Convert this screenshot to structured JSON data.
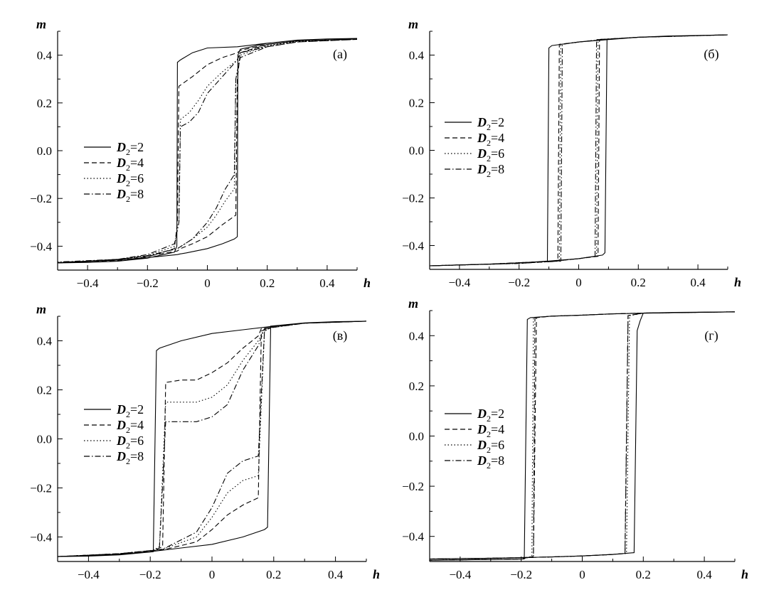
{
  "chart_data": [
    {
      "type": "line",
      "panel_label": "(а)",
      "xlabel": "h",
      "ylabel": "m",
      "xlim": [
        -0.5,
        0.5
      ],
      "ylim": [
        -0.5,
        0.5
      ],
      "xticks": [
        "-0.4",
        "-0.2",
        "0",
        "0.2",
        "0.4"
      ],
      "yticks": [
        "0.4",
        "0.2",
        "0.0",
        "-0.2",
        "-0.4"
      ],
      "grid": false,
      "legend_position": "middle-left",
      "series": [
        {
          "name": "D2=2",
          "legend_label": "D",
          "legend_sub": "2",
          "legend_val": "=2",
          "style": "solid",
          "x": [
            -0.5,
            -0.3,
            -0.2,
            -0.1,
            -0.09,
            -0.07,
            0,
            0.05,
            0.09,
            0.1,
            0.102,
            0.11,
            0.2,
            0.3,
            0.4,
            0.5,
            0.4,
            0.3,
            0.2,
            0.1,
            0,
            -0.05,
            -0.09,
            -0.1,
            -0.102,
            -0.11,
            -0.2,
            -0.3,
            -0.4,
            -0.5
          ],
          "y": [
            -0.47,
            -0.458,
            -0.448,
            -0.435,
            -0.432,
            -0.428,
            -0.41,
            -0.39,
            -0.37,
            -0.36,
            0.4,
            0.425,
            0.45,
            0.463,
            0.468,
            0.47,
            0.468,
            0.463,
            0.45,
            0.435,
            0.43,
            0.41,
            0.38,
            0.37,
            -0.4,
            -0.425,
            -0.45,
            -0.463,
            -0.468,
            -0.47
          ]
        },
        {
          "name": "D2=4",
          "legend_label": "D",
          "legend_sub": "2",
          "legend_val": "=4",
          "style": "dashed",
          "x": [
            -0.5,
            -0.3,
            -0.2,
            -0.1,
            -0.09,
            -0.05,
            0,
            0.05,
            0.095,
            0.1,
            0.11,
            0.2,
            0.3,
            0.5,
            0.3,
            0.2,
            0.11,
            0.1,
            0.05,
            0,
            -0.05,
            -0.095,
            -0.1,
            -0.11,
            -0.2,
            -0.3,
            -0.5
          ],
          "y": [
            -0.47,
            -0.455,
            -0.442,
            -0.42,
            -0.41,
            -0.39,
            -0.36,
            -0.31,
            -0.27,
            0.3,
            0.41,
            0.445,
            0.46,
            0.468,
            0.46,
            0.445,
            0.42,
            0.41,
            0.39,
            0.36,
            0.31,
            0.27,
            -0.3,
            -0.41,
            -0.445,
            -0.46,
            -0.468
          ]
        },
        {
          "name": "D2=6",
          "legend_label": "D",
          "legend_sub": "2",
          "legend_val": "=6",
          "style": "dotted",
          "x": [
            -0.5,
            -0.3,
            -0.2,
            -0.1,
            -0.05,
            0,
            0.03,
            0.06,
            0.09,
            0.095,
            0.11,
            0.2,
            0.3,
            0.5,
            0.3,
            0.2,
            0.11,
            0.1,
            0.05,
            0,
            -0.03,
            -0.06,
            -0.09,
            -0.095,
            -0.11,
            -0.2,
            -0.3,
            -0.5
          ],
          "y": [
            -0.47,
            -0.455,
            -0.44,
            -0.41,
            -0.37,
            -0.32,
            -0.27,
            -0.21,
            -0.16,
            0.3,
            0.4,
            0.44,
            0.458,
            0.467,
            0.458,
            0.44,
            0.41,
            0.38,
            0.33,
            0.27,
            0.21,
            0.16,
            0.13,
            -0.3,
            -0.4,
            -0.44,
            -0.458,
            -0.467
          ]
        },
        {
          "name": "D2=8",
          "legend_label": "D",
          "legend_sub": "2",
          "legend_val": "=8",
          "style": "dashdot",
          "x": [
            -0.5,
            -0.3,
            -0.2,
            -0.1,
            -0.05,
            0,
            0.03,
            0.06,
            0.09,
            0.095,
            0.11,
            0.2,
            0.3,
            0.5,
            0.3,
            0.2,
            0.11,
            0.1,
            0.05,
            0,
            -0.03,
            -0.06,
            -0.09,
            -0.095,
            -0.11,
            -0.2,
            -0.3,
            -0.5
          ],
          "y": [
            -0.47,
            -0.455,
            -0.44,
            -0.41,
            -0.37,
            -0.3,
            -0.24,
            -0.16,
            -0.1,
            0.3,
            0.39,
            0.435,
            0.455,
            0.466,
            0.455,
            0.435,
            0.41,
            0.38,
            0.31,
            0.24,
            0.16,
            0.12,
            0.1,
            -0.3,
            -0.39,
            -0.435,
            -0.455,
            -0.466
          ]
        }
      ]
    },
    {
      "type": "line",
      "panel_label": "(б)",
      "xlabel": "h",
      "ylabel": "m",
      "xlim": [
        -0.5,
        0.5
      ],
      "ylim": [
        -0.5,
        0.5
      ],
      "xticks": [
        "-0.4",
        "-0.2",
        "0",
        "0.2",
        "0.4"
      ],
      "yticks": [
        "0.4",
        "0.2",
        "0.0",
        "-0.2",
        "-0.4"
      ],
      "grid": false,
      "legend_position": "upper-left",
      "series": [
        {
          "name": "D2=2",
          "legend_label": "D",
          "legend_sub": "2",
          "legend_val": "=2",
          "style": "solid",
          "x": [
            -0.5,
            -0.3,
            -0.2,
            -0.1,
            0,
            0.08,
            0.088,
            0.095,
            0.2,
            0.3,
            0.5,
            0.3,
            0.2,
            0.1,
            0,
            -0.09,
            -0.1,
            -0.105,
            -0.2,
            -0.3,
            -0.5
          ],
          "y": [
            -0.485,
            -0.478,
            -0.473,
            -0.465,
            -0.455,
            -0.44,
            -0.43,
            0.465,
            0.475,
            0.48,
            0.485,
            0.48,
            0.475,
            0.465,
            0.455,
            0.44,
            0.43,
            -0.465,
            -0.473,
            -0.478,
            -0.485
          ]
        },
        {
          "name": "D2=4",
          "legend_label": "D",
          "legend_sub": "2",
          "legend_val": "=4",
          "style": "dashed",
          "x": [
            -0.5,
            -0.3,
            -0.08,
            0,
            0.065,
            0.07,
            0.2,
            0.5,
            0.2,
            0.08,
            0,
            -0.065,
            -0.07,
            -0.2,
            -0.5
          ],
          "y": [
            -0.485,
            -0.478,
            -0.465,
            -0.455,
            -0.445,
            0.465,
            0.475,
            0.485,
            0.475,
            0.465,
            0.455,
            0.445,
            -0.465,
            -0.475,
            -0.485
          ]
        },
        {
          "name": "D2=6",
          "legend_label": "D",
          "legend_sub": "2",
          "legend_val": "=6",
          "style": "dotted",
          "x": [
            -0.5,
            -0.3,
            -0.08,
            0,
            0.06,
            0.065,
            0.2,
            0.5,
            0.2,
            0.08,
            0,
            -0.06,
            -0.065,
            -0.2,
            -0.5
          ],
          "y": [
            -0.485,
            -0.478,
            -0.465,
            -0.455,
            -0.445,
            0.465,
            0.475,
            0.485,
            0.475,
            0.465,
            0.455,
            0.445,
            -0.465,
            -0.475,
            -0.485
          ]
        },
        {
          "name": "D2=8",
          "legend_label": "D",
          "legend_sub": "2",
          "legend_val": "=8",
          "style": "dashdot",
          "x": [
            -0.5,
            -0.3,
            -0.08,
            0,
            0.055,
            0.06,
            0.2,
            0.5,
            0.2,
            0.08,
            0,
            -0.055,
            -0.06,
            -0.2,
            -0.5
          ],
          "y": [
            -0.485,
            -0.478,
            -0.465,
            -0.455,
            -0.445,
            0.465,
            0.475,
            0.485,
            0.475,
            0.465,
            0.455,
            0.445,
            -0.465,
            -0.475,
            -0.485
          ]
        }
      ]
    },
    {
      "type": "line",
      "panel_label": "(в)",
      "xlabel": "h",
      "ylabel": "m",
      "xlim": [
        -0.5,
        0.5
      ],
      "ylim": [
        -0.5,
        0.5
      ],
      "xticks": [
        "-0.4",
        "-0.2",
        "0",
        "0.2",
        "0.4"
      ],
      "yticks": [
        "0.4",
        "0.2",
        "0.0",
        "-0.2",
        "-0.4"
      ],
      "grid": false,
      "legend_position": "middle-left",
      "series": [
        {
          "name": "D2=2",
          "legend_label": "D",
          "legend_sub": "2",
          "legend_val": "=2",
          "style": "solid",
          "x": [
            -0.5,
            -0.3,
            -0.2,
            -0.1,
            0,
            0.1,
            0.17,
            0.18,
            0.19,
            0.3,
            0.4,
            0.5,
            0.3,
            0.2,
            0.1,
            0,
            -0.1,
            -0.17,
            -0.18,
            -0.19,
            -0.3,
            -0.4,
            -0.5
          ],
          "y": [
            -0.48,
            -0.47,
            -0.46,
            -0.445,
            -0.43,
            -0.4,
            -0.37,
            -0.36,
            0.46,
            0.473,
            0.478,
            0.48,
            0.473,
            0.46,
            0.445,
            0.43,
            0.4,
            0.37,
            0.36,
            -0.46,
            -0.473,
            -0.478,
            -0.48
          ]
        },
        {
          "name": "D2=4",
          "legend_label": "D",
          "legend_sub": "2",
          "legend_val": "=4",
          "style": "dashed",
          "x": [
            -0.5,
            -0.3,
            -0.15,
            -0.05,
            0,
            0.05,
            0.1,
            0.15,
            0.16,
            0.2,
            0.3,
            0.5,
            0.3,
            0.16,
            0.15,
            0.1,
            0.05,
            0,
            -0.05,
            -0.1,
            -0.15,
            -0.16,
            -0.2,
            -0.3,
            -0.5
          ],
          "y": [
            -0.48,
            -0.468,
            -0.45,
            -0.42,
            -0.37,
            -0.31,
            -0.27,
            -0.24,
            0.44,
            0.46,
            0.472,
            0.48,
            0.472,
            0.45,
            0.42,
            0.37,
            0.31,
            0.27,
            0.24,
            0.24,
            0.23,
            -0.44,
            -0.46,
            -0.472,
            -0.48
          ]
        },
        {
          "name": "D2=6",
          "legend_label": "D",
          "legend_sub": "2",
          "legend_val": "=6",
          "style": "dotted",
          "x": [
            -0.5,
            -0.3,
            -0.16,
            -0.05,
            0,
            0.05,
            0.1,
            0.15,
            0.17,
            0.2,
            0.3,
            0.5,
            0.3,
            0.17,
            0.15,
            0.1,
            0.05,
            0,
            -0.05,
            -0.1,
            -0.15,
            -0.17,
            -0.2,
            -0.3,
            -0.5
          ],
          "y": [
            -0.48,
            -0.468,
            -0.45,
            -0.4,
            -0.32,
            -0.22,
            -0.17,
            -0.15,
            0.44,
            0.46,
            0.472,
            0.48,
            0.472,
            0.45,
            0.4,
            0.32,
            0.22,
            0.17,
            0.15,
            0.15,
            0.15,
            -0.44,
            -0.46,
            -0.472,
            -0.48
          ]
        },
        {
          "name": "D2=8",
          "legend_label": "D",
          "legend_sub": "2",
          "legend_val": "=8",
          "style": "dashdot",
          "x": [
            -0.5,
            -0.3,
            -0.16,
            -0.05,
            0,
            0.05,
            0.1,
            0.15,
            0.17,
            0.2,
            0.3,
            0.5,
            0.3,
            0.17,
            0.15,
            0.1,
            0.05,
            0,
            -0.05,
            -0.1,
            -0.15,
            -0.17,
            -0.2,
            -0.3,
            -0.5
          ],
          "y": [
            -0.48,
            -0.468,
            -0.45,
            -0.38,
            -0.28,
            -0.14,
            -0.09,
            -0.07,
            0.44,
            0.46,
            0.472,
            0.48,
            0.472,
            0.45,
            0.38,
            0.28,
            0.14,
            0.09,
            0.07,
            0.07,
            0.07,
            -0.44,
            -0.46,
            -0.472,
            -0.48
          ]
        }
      ]
    },
    {
      "type": "line",
      "panel_label": "(г)",
      "xlabel": "h",
      "ylabel": "m",
      "xlim": [
        -0.5,
        0.5
      ],
      "ylim": [
        -0.5,
        0.5
      ],
      "xticks": [
        "-0.4",
        "-0.2",
        "0",
        "0.2",
        "0.4"
      ],
      "yticks": [
        "0.4",
        "0.2",
        "0.0",
        "-0.2",
        "-0.4"
      ],
      "grid": false,
      "legend_position": "middle-left",
      "series": [
        {
          "name": "D2=2",
          "legend_label": "D",
          "legend_sub": "2",
          "legend_val": "=2",
          "style": "solid",
          "x": [
            -0.5,
            -0.3,
            -0.1,
            0,
            0.1,
            0.17,
            0.18,
            0.19,
            0.2,
            0.3,
            0.5,
            0.3,
            0.1,
            0,
            -0.1,
            -0.17,
            -0.18,
            -0.19,
            -0.3,
            -0.5
          ],
          "y": [
            -0.49,
            -0.487,
            -0.482,
            -0.478,
            -0.472,
            -0.465,
            0.42,
            0.46,
            0.49,
            0.493,
            0.495,
            0.492,
            0.487,
            0.482,
            0.478,
            0.472,
            0.465,
            -0.49,
            -0.492,
            -0.495
          ]
        },
        {
          "name": "D2=4",
          "legend_label": "D",
          "legend_sub": "2",
          "legend_val": "=4",
          "style": "dashed",
          "x": [
            -0.5,
            -0.3,
            -0.1,
            0,
            0.1,
            0.14,
            0.15,
            0.2,
            0.5,
            0.2,
            0.1,
            0,
            -0.1,
            -0.15,
            -0.16,
            -0.2,
            -0.5
          ],
          "y": [
            -0.49,
            -0.487,
            -0.482,
            -0.478,
            -0.472,
            -0.468,
            0.48,
            0.49,
            0.495,
            0.49,
            0.487,
            0.482,
            0.478,
            0.472,
            -0.48,
            -0.49,
            -0.495
          ]
        },
        {
          "name": "D2=6",
          "legend_label": "D",
          "legend_sub": "2",
          "legend_val": "=6",
          "style": "dotted",
          "x": [
            -0.5,
            -0.3,
            -0.1,
            0,
            0.1,
            0.145,
            0.155,
            0.2,
            0.5,
            0.2,
            0.1,
            0,
            -0.1,
            -0.16,
            -0.165,
            -0.2,
            -0.5
          ],
          "y": [
            -0.49,
            -0.487,
            -0.482,
            -0.478,
            -0.472,
            -0.468,
            0.48,
            0.49,
            0.495,
            0.49,
            0.487,
            0.482,
            0.478,
            0.472,
            -0.48,
            -0.49,
            -0.495
          ]
        },
        {
          "name": "D2=8",
          "legend_label": "D",
          "legend_sub": "2",
          "legend_val": "=8",
          "style": "dashdot",
          "x": [
            -0.5,
            -0.3,
            -0.1,
            0,
            0.1,
            0.14,
            0.15,
            0.2,
            0.5,
            0.2,
            0.1,
            0,
            -0.1,
            -0.155,
            -0.16,
            -0.2,
            -0.5
          ],
          "y": [
            -0.49,
            -0.487,
            -0.482,
            -0.478,
            -0.472,
            -0.468,
            0.48,
            0.49,
            0.495,
            0.49,
            0.487,
            0.482,
            0.478,
            0.472,
            -0.48,
            -0.49,
            -0.495
          ]
        }
      ]
    }
  ]
}
